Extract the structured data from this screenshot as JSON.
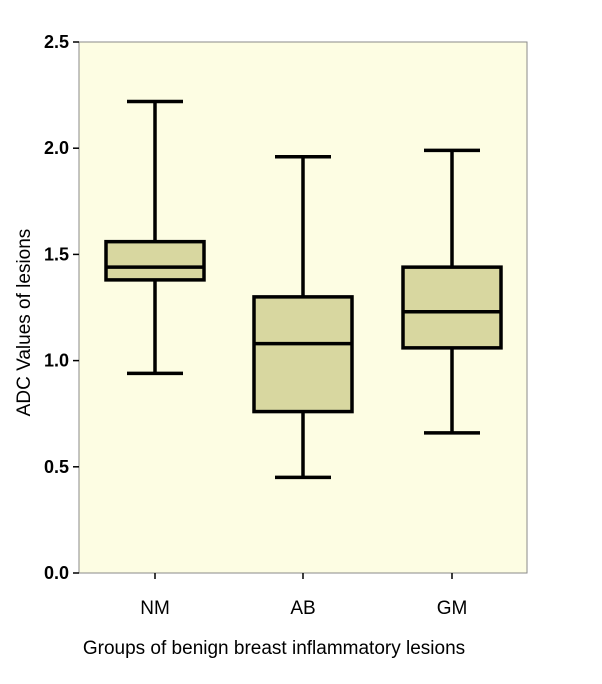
{
  "chart_data": {
    "type": "box",
    "title": "",
    "xlabel": "Groups of benign breast inflammatory lesions",
    "ylabel": "ADC Values  of lesions",
    "ylim": [
      0.0,
      2.5
    ],
    "yticks": [
      0.0,
      0.5,
      1.0,
      1.5,
      2.0,
      2.5
    ],
    "ytick_labels": [
      "0.0",
      "0.5",
      "1.0",
      "1.5",
      "2.0",
      "2.5"
    ],
    "categories": [
      "NM",
      "AB",
      "GM"
    ],
    "boxes": [
      {
        "category": "NM",
        "min": 0.94,
        "q1": 1.38,
        "median": 1.44,
        "q3": 1.56,
        "max": 2.22
      },
      {
        "category": "AB",
        "min": 0.45,
        "q1": 0.76,
        "median": 1.08,
        "q3": 1.3,
        "max": 1.96
      },
      {
        "category": "GM",
        "min": 0.66,
        "q1": 1.06,
        "median": 1.23,
        "q3": 1.44,
        "max": 1.99
      }
    ],
    "grid": false,
    "colors": {
      "plot_background": "#fdfde3",
      "box_fill": "#d8d7a0",
      "stroke": "#000000"
    }
  }
}
